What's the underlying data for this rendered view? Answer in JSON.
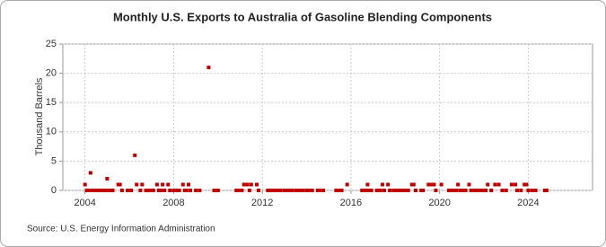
{
  "chart_data": {
    "type": "scatter",
    "title": "Monthly U.S. Exports to Australia of Gasoline Blending Components",
    "y_label": "Thousand Barrels",
    "source": "Source: U.S. Energy Information Administration",
    "color": "#c00000",
    "grid": true,
    "xlim": [
      2003,
      2026.9
    ],
    "xticks": [
      2004,
      2008,
      2012,
      2016,
      2020,
      2024
    ],
    "ylim": [
      0,
      25
    ],
    "yticks": [
      0,
      5,
      10,
      15,
      20,
      25
    ],
    "x": [
      2004.0,
      2004.08,
      2004.17,
      2004.25,
      2004.33,
      2004.42,
      2004.5,
      2004.58,
      2004.67,
      2004.75,
      2004.83,
      2004.92,
      2005.0,
      2005.08,
      2005.17,
      2005.25,
      2005.5,
      2005.58,
      2005.67,
      2005.92,
      2006.08,
      2006.25,
      2006.33,
      2006.5,
      2006.58,
      2006.75,
      2006.83,
      2006.92,
      2007.0,
      2007.08,
      2007.25,
      2007.33,
      2007.42,
      2007.5,
      2007.58,
      2007.75,
      2007.83,
      2008.0,
      2008.08,
      2008.17,
      2008.25,
      2008.42,
      2008.5,
      2008.58,
      2008.67,
      2008.75,
      2009.0,
      2009.17,
      2009.58,
      2009.83,
      2009.92,
      2010.0,
      2010.83,
      2010.92,
      2011.0,
      2011.08,
      2011.17,
      2011.25,
      2011.33,
      2011.42,
      2011.5,
      2011.75,
      2011.83,
      2012.25,
      2012.33,
      2012.42,
      2012.5,
      2012.58,
      2012.67,
      2012.75,
      2012.83,
      2013.0,
      2013.08,
      2013.17,
      2013.25,
      2013.33,
      2013.5,
      2013.58,
      2013.67,
      2013.75,
      2013.83,
      2014.0,
      2014.08,
      2014.17,
      2014.25,
      2014.5,
      2014.58,
      2014.75,
      2015.33,
      2015.42,
      2015.5,
      2015.58,
      2015.83,
      2016.5,
      2016.58,
      2016.67,
      2016.75,
      2016.83,
      2016.92,
      2017.17,
      2017.25,
      2017.33,
      2017.42,
      2017.5,
      2017.67,
      2017.75,
      2017.92,
      2018.0,
      2018.08,
      2018.17,
      2018.25,
      2018.33,
      2018.42,
      2018.5,
      2018.58,
      2018.75,
      2018.83,
      2018.92,
      2019.17,
      2019.25,
      2019.5,
      2019.58,
      2019.67,
      2019.75,
      2019.83,
      2020.08,
      2020.42,
      2020.58,
      2020.67,
      2020.75,
      2020.83,
      2020.92,
      2021.08,
      2021.17,
      2021.33,
      2021.42,
      2021.58,
      2021.67,
      2021.83,
      2021.92,
      2022.0,
      2022.08,
      2022.17,
      2022.33,
      2022.5,
      2022.67,
      2022.83,
      2023.0,
      2023.25,
      2023.42,
      2023.5,
      2023.67,
      2023.83,
      2023.92,
      2024.0,
      2024.17,
      2024.33,
      2024.75,
      2024.83
    ],
    "values": [
      1,
      0,
      0,
      3,
      0,
      0,
      0,
      0,
      0,
      0,
      0,
      0,
      2,
      0,
      0,
      0,
      1,
      1,
      0,
      0,
      0,
      6,
      1,
      0,
      1,
      0,
      0,
      0,
      0,
      0,
      1,
      0,
      0,
      1,
      0,
      1,
      0,
      0,
      0,
      0,
      0,
      1,
      0,
      0,
      1,
      0,
      0,
      0,
      21,
      0,
      0,
      0,
      0,
      0,
      0,
      0,
      1,
      1,
      1,
      0,
      1,
      1,
      0,
      0,
      0,
      0,
      0,
      0,
      0,
      0,
      0,
      0,
      0,
      0,
      0,
      0,
      0,
      0,
      0,
      0,
      0,
      0,
      0,
      0,
      0,
      0,
      0,
      0,
      0,
      0,
      0,
      0,
      1,
      0,
      0,
      0,
      1,
      0,
      0,
      0,
      0,
      0,
      1,
      0,
      1,
      0,
      0,
      0,
      0,
      0,
      0,
      0,
      0,
      0,
      0,
      1,
      1,
      0,
      0,
      0,
      1,
      1,
      1,
      1,
      0,
      1,
      0,
      0,
      0,
      0,
      1,
      0,
      0,
      0,
      1,
      0,
      0,
      0,
      0,
      0,
      0,
      0,
      1,
      0,
      1,
      1,
      0,
      0,
      1,
      1,
      0,
      0,
      1,
      1,
      0,
      0,
      0,
      0,
      0
    ]
  }
}
